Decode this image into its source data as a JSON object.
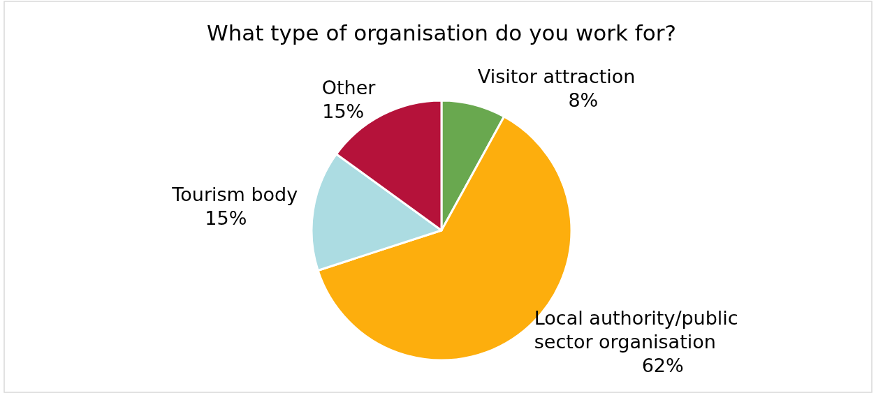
{
  "chart_data": {
    "type": "pie",
    "title": "What type of organisation do you work for?",
    "categories": [
      "Visitor attraction",
      "Local authority/public sector organisation",
      "Tourism body",
      "Other"
    ],
    "values": [
      8,
      62,
      15,
      15
    ],
    "colors": [
      "#69a84f",
      "#fdae0d",
      "#acdce2",
      "#b5123a"
    ],
    "value_labels": [
      "8%",
      "62%",
      "15%",
      "15%"
    ]
  }
}
